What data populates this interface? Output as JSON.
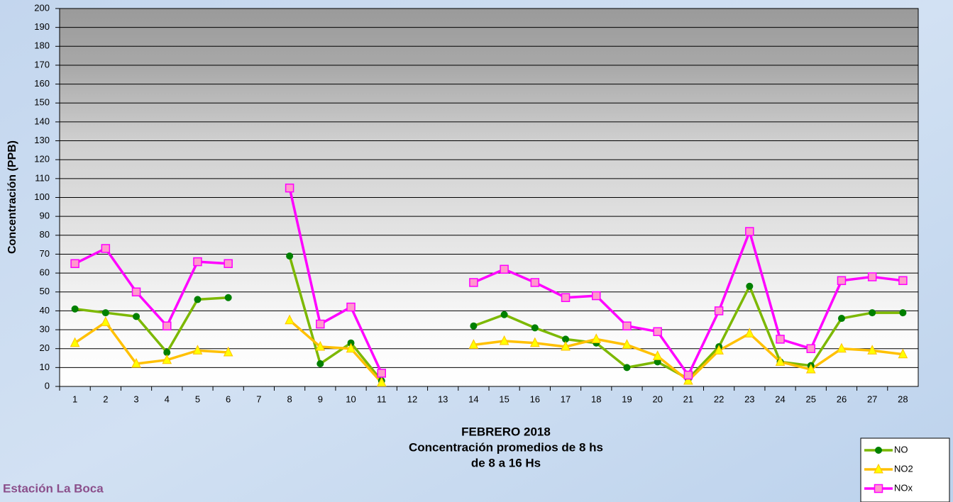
{
  "chart_data": {
    "type": "line",
    "title": "FEBRERO 2018",
    "subtitle": [
      "Concentración promedios de 8 hs",
      "de 8 a 16 Hs"
    ],
    "annotation": "Estación La Boca",
    "ylabel": "Concentración (PPB)",
    "categories": [
      "1",
      "2",
      "3",
      "4",
      "5",
      "6",
      "7",
      "8",
      "9",
      "10",
      "11",
      "12",
      "13",
      "14",
      "15",
      "16",
      "17",
      "18",
      "19",
      "20",
      "21",
      "22",
      "23",
      "24",
      "25",
      "26",
      "27",
      "28"
    ],
    "series": [
      {
        "name": "NO",
        "color": "#7cb800",
        "marker": "circle",
        "marker_color": "#008000",
        "values": [
          41,
          39,
          37,
          18,
          46,
          47,
          null,
          69,
          12,
          23,
          3,
          null,
          null,
          32,
          38,
          31,
          25,
          23,
          10,
          13,
          4,
          21,
          53,
          13,
          11,
          36,
          39,
          39
        ]
      },
      {
        "name": "NO2",
        "color": "#ffc000",
        "marker": "triangle",
        "marker_color": "#ffff00",
        "values": [
          23,
          34,
          12,
          14,
          19,
          18,
          null,
          35,
          21,
          20,
          2,
          null,
          null,
          22,
          24,
          23,
          21,
          25,
          22,
          16,
          3,
          19,
          28,
          13,
          9,
          20,
          19,
          17
        ]
      },
      {
        "name": "NOx",
        "color": "#ff00ff",
        "marker": "square",
        "marker_color": "#ff99cc",
        "values": [
          65,
          73,
          50,
          32,
          66,
          65,
          null,
          105,
          33,
          42,
          7,
          null,
          null,
          55,
          62,
          55,
          47,
          48,
          32,
          29,
          6,
          40,
          82,
          25,
          20,
          56,
          58,
          56
        ]
      }
    ],
    "ylim": [
      0,
      200
    ],
    "yticks": [
      0,
      10,
      20,
      30,
      40,
      50,
      60,
      70,
      80,
      90,
      100,
      110,
      120,
      130,
      140,
      150,
      160,
      170,
      180,
      190,
      200
    ],
    "grid": true,
    "legend": "lower right"
  }
}
